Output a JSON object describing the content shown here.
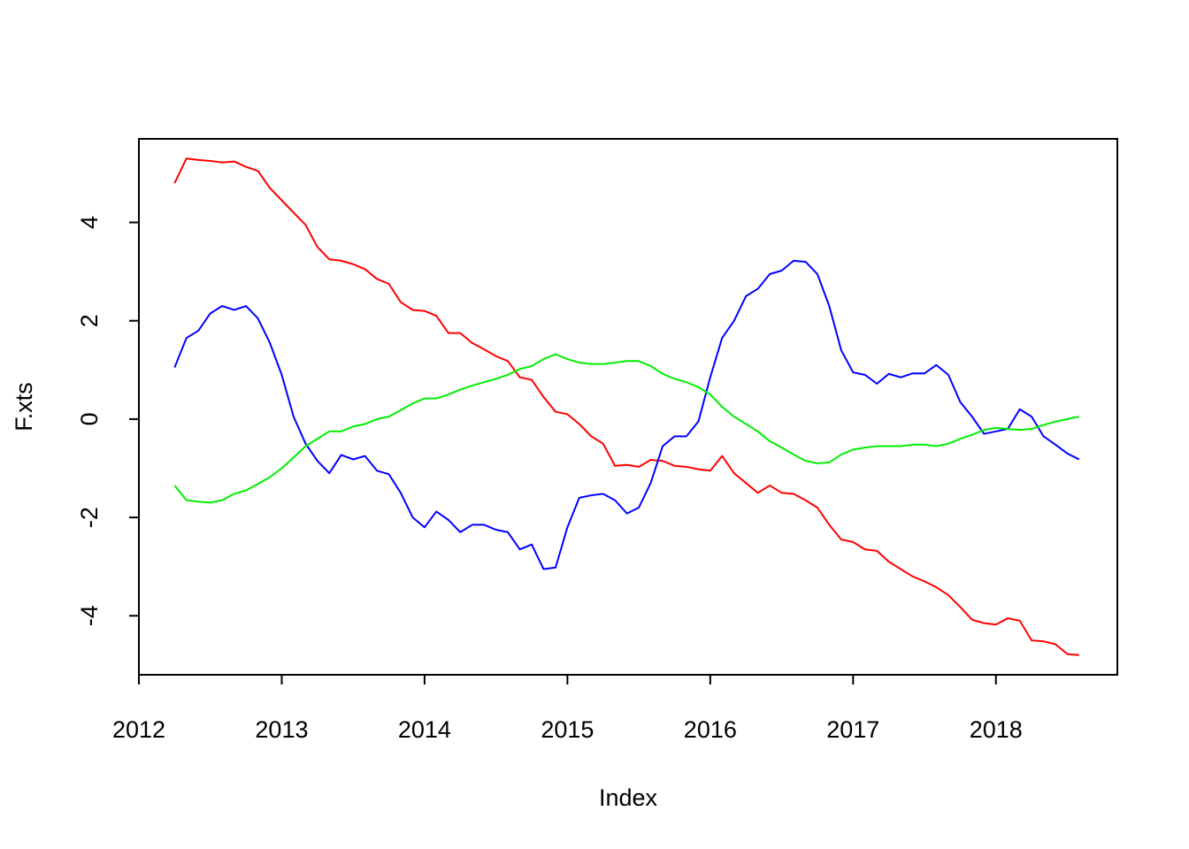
{
  "chart_data": {
    "type": "line",
    "title": "",
    "xlabel": "Index",
    "ylabel": "F.xts",
    "xlim": [
      2012.0,
      2018.85
    ],
    "ylim": [
      -5.2,
      5.7
    ],
    "x_ticks": [
      2012,
      2013,
      2014,
      2015,
      2016,
      2017,
      2018
    ],
    "x_tick_labels": [
      "2012",
      "2013",
      "2014",
      "2015",
      "2016",
      "2017",
      "2018"
    ],
    "y_ticks": [
      -4,
      -2,
      0,
      2,
      4
    ],
    "y_tick_labels": [
      "-4",
      "-2",
      "0",
      "2",
      "4"
    ],
    "grid": false,
    "legend": "none",
    "x": [
      2012.25,
      2012.333,
      2012.417,
      2012.5,
      2012.583,
      2012.667,
      2012.75,
      2012.833,
      2012.917,
      2013.0,
      2013.083,
      2013.167,
      2013.25,
      2013.333,
      2013.417,
      2013.5,
      2013.583,
      2013.667,
      2013.75,
      2013.833,
      2013.917,
      2014.0,
      2014.083,
      2014.167,
      2014.25,
      2014.333,
      2014.417,
      2014.5,
      2014.583,
      2014.667,
      2014.75,
      2014.833,
      2014.917,
      2015.0,
      2015.083,
      2015.167,
      2015.25,
      2015.333,
      2015.417,
      2015.5,
      2015.583,
      2015.667,
      2015.75,
      2015.833,
      2015.917,
      2016.0,
      2016.083,
      2016.167,
      2016.25,
      2016.333,
      2016.417,
      2016.5,
      2016.583,
      2016.667,
      2016.75,
      2016.833,
      2016.917,
      2017.0,
      2017.083,
      2017.167,
      2017.25,
      2017.333,
      2017.417,
      2017.5,
      2017.583,
      2017.667,
      2017.75,
      2017.833,
      2017.917,
      2018.0,
      2018.083,
      2018.167,
      2018.25,
      2018.333,
      2018.417,
      2018.5,
      2018.583
    ],
    "series": [
      {
        "color": "#ff0000",
        "values": [
          4.8,
          5.3,
          5.27,
          5.25,
          5.22,
          5.24,
          5.13,
          5.05,
          4.7,
          4.45,
          4.2,
          3.95,
          3.5,
          3.25,
          3.22,
          3.15,
          3.05,
          2.85,
          2.75,
          2.38,
          2.22,
          2.2,
          2.1,
          1.75,
          1.75,
          1.55,
          1.42,
          1.28,
          1.18,
          0.85,
          0.8,
          0.45,
          0.15,
          0.1,
          -0.1,
          -0.35,
          -0.5,
          -0.95,
          -0.93,
          -0.97,
          -0.83,
          -0.85,
          -0.95,
          -0.97,
          -1.02,
          -1.05,
          -0.75,
          -1.1,
          -1.3,
          -1.5,
          -1.35,
          -1.5,
          -1.52,
          -1.65,
          -1.8,
          -2.15,
          -2.45,
          -2.5,
          -2.65,
          -2.68,
          -2.9,
          -3.05,
          -3.2,
          -3.3,
          -3.42,
          -3.58,
          -3.82,
          -4.08,
          -4.15,
          -4.18,
          -4.05,
          -4.1,
          -4.5,
          -4.52,
          -4.58,
          -4.78,
          -4.8
        ]
      },
      {
        "color": "#0000ff",
        "values": [
          1.05,
          1.65,
          1.8,
          2.15,
          2.3,
          2.22,
          2.3,
          2.05,
          1.55,
          0.9,
          0.05,
          -0.5,
          -0.85,
          -1.1,
          -0.73,
          -0.82,
          -0.75,
          -1.05,
          -1.12,
          -1.5,
          -2.0,
          -2.2,
          -1.88,
          -2.05,
          -2.3,
          -2.15,
          -2.15,
          -2.25,
          -2.3,
          -2.65,
          -2.55,
          -3.05,
          -3.02,
          -2.2,
          -1.6,
          -1.55,
          -1.52,
          -1.65,
          -1.92,
          -1.8,
          -1.3,
          -0.55,
          -0.35,
          -0.35,
          -0.05,
          0.85,
          1.65,
          2.0,
          2.5,
          2.65,
          2.95,
          3.02,
          3.22,
          3.2,
          2.95,
          2.3,
          1.4,
          0.95,
          0.9,
          0.72,
          0.92,
          0.85,
          0.93,
          0.93,
          1.1,
          0.9,
          0.35,
          0.05,
          -0.3,
          -0.25,
          -0.2,
          0.2,
          0.05,
          -0.35,
          -0.52,
          -0.7,
          -0.82
        ]
      },
      {
        "color": "#00ee00",
        "values": [
          -1.35,
          -1.65,
          -1.68,
          -1.7,
          -1.65,
          -1.52,
          -1.45,
          -1.32,
          -1.18,
          -1.0,
          -0.78,
          -0.55,
          -0.4,
          -0.25,
          -0.25,
          -0.15,
          -0.1,
          0.0,
          0.05,
          0.18,
          0.32,
          0.42,
          0.42,
          0.5,
          0.6,
          0.68,
          0.75,
          0.82,
          0.9,
          1.02,
          1.08,
          1.22,
          1.32,
          1.22,
          1.15,
          1.12,
          1.12,
          1.15,
          1.18,
          1.18,
          1.08,
          0.92,
          0.82,
          0.75,
          0.65,
          0.5,
          0.25,
          0.05,
          -0.1,
          -0.25,
          -0.45,
          -0.58,
          -0.72,
          -0.85,
          -0.9,
          -0.88,
          -0.72,
          -0.62,
          -0.58,
          -0.55,
          -0.55,
          -0.55,
          -0.52,
          -0.52,
          -0.55,
          -0.5,
          -0.4,
          -0.32,
          -0.22,
          -0.18,
          -0.2,
          -0.22,
          -0.2,
          -0.12,
          -0.05,
          0.0,
          0.05
        ]
      }
    ]
  }
}
